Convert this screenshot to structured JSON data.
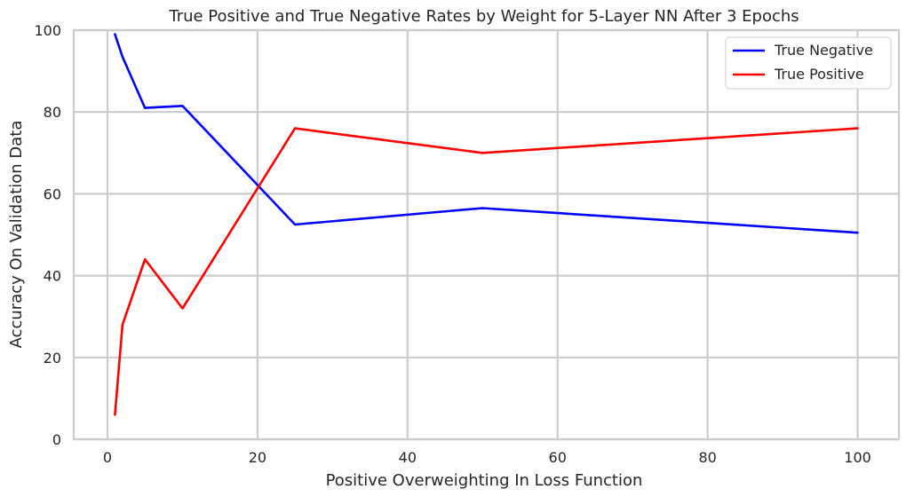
{
  "chart_data": {
    "type": "line",
    "title": "True Positive and True Negative Rates by Weight for 5-Layer NN After 3 Epochs",
    "xlabel": "Positive Overweighting In Loss Function",
    "ylabel": "Accuracy On Validation Data",
    "x": [
      1,
      2,
      5,
      10,
      25,
      50,
      100
    ],
    "xlim": [
      -4.5,
      105.5
    ],
    "ylim": [
      0,
      100
    ],
    "xticks": [
      0,
      20,
      40,
      60,
      80,
      100
    ],
    "yticks": [
      0,
      20,
      40,
      60,
      80,
      100
    ],
    "grid": true,
    "legend_position": "top-right",
    "series": [
      {
        "name": "True Negative",
        "color": "#0000ff",
        "values": [
          99,
          93.5,
          81,
          81.5,
          52.5,
          56.5,
          50.5
        ]
      },
      {
        "name": "True Positive",
        "color": "#ff0000",
        "values": [
          6,
          28,
          44,
          32,
          76,
          70,
          76
        ]
      }
    ]
  }
}
